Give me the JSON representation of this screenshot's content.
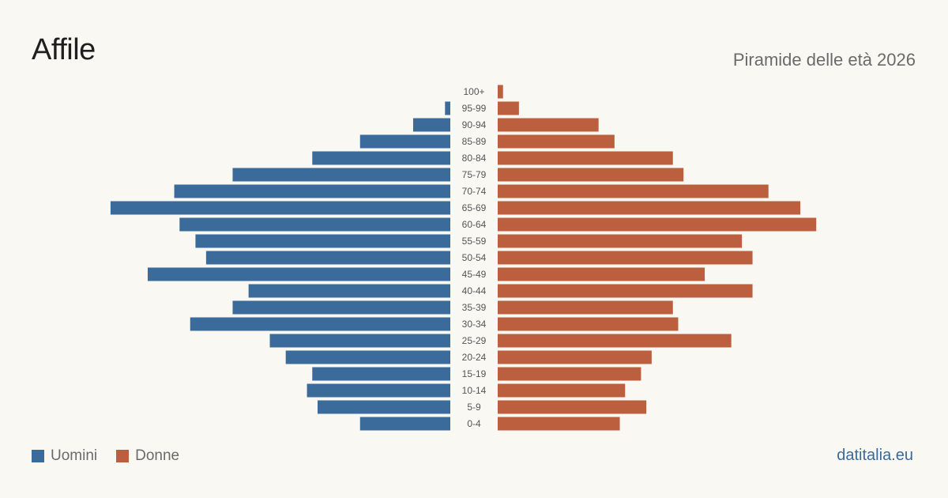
{
  "header": {
    "title": "Affile",
    "subtitle": "Piramide delle età 2026"
  },
  "footer": {
    "source": "datitalia.eu"
  },
  "colors": {
    "men": "#3b6b9b",
    "women": "#bc5f3e",
    "label": "#555555"
  },
  "chart_data": {
    "type": "bar",
    "orientation": "horizontal-pyramid",
    "categories": [
      "100+",
      "95-99",
      "90-94",
      "85-89",
      "80-84",
      "75-79",
      "70-74",
      "65-69",
      "60-64",
      "55-59",
      "50-54",
      "45-49",
      "40-44",
      "35-39",
      "30-34",
      "25-29",
      "20-24",
      "15-19",
      "10-14",
      "5-9",
      "0-4"
    ],
    "series": [
      {
        "name": "Uomini",
        "values": [
          0,
          1,
          7,
          17,
          26,
          41,
          52,
          64,
          51,
          48,
          46,
          57,
          38,
          41,
          49,
          34,
          31,
          26,
          27,
          25,
          17
        ]
      },
      {
        "name": "Donne",
        "values": [
          1,
          4,
          19,
          22,
          33,
          35,
          51,
          57,
          60,
          46,
          48,
          39,
          48,
          33,
          34,
          44,
          29,
          27,
          24,
          28,
          23
        ]
      }
    ],
    "legend": "bottom-left"
  }
}
